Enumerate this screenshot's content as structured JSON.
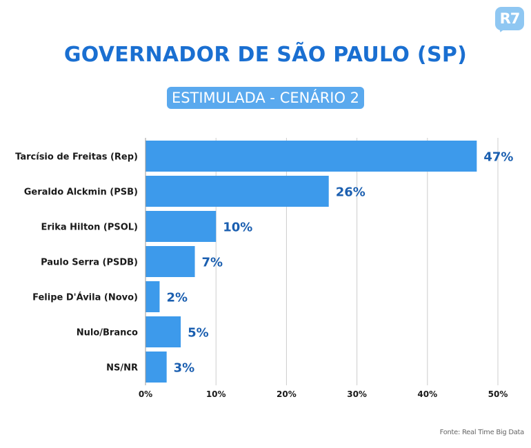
{
  "logo": "R7",
  "header": {
    "title": "GOVERNADOR DE SÃO PAULO (SP)",
    "subtitle": "ESTIMULADA - CENÁRIO 2"
  },
  "source": "Fonte: Real Time Big Data",
  "colors": {
    "bar": "#3d9aeb",
    "title": "#1a6fd1",
    "value_label": "#1b5fb0",
    "grid": "#cccccc"
  },
  "chart_data": {
    "type": "bar",
    "orientation": "horizontal",
    "title": "GOVERNADOR DE SÃO PAULO (SP)",
    "subtitle": "ESTIMULADA - CENÁRIO 2",
    "categories": [
      "Tarcísio de Freitas (Rep)",
      "Geraldo Alckmin (PSB)",
      "Erika Hilton (PSOL)",
      "Paulo Serra (PSDB)",
      "Felipe D'Ávila (Novo)",
      "Nulo/Branco",
      "NS/NR"
    ],
    "values": [
      47,
      26,
      10,
      7,
      2,
      5,
      3
    ],
    "value_labels": [
      "47%",
      "26%",
      "10%",
      "7%",
      "2%",
      "5%",
      "3%"
    ],
    "xlim": [
      0,
      50
    ],
    "x_ticks": [
      0,
      10,
      20,
      30,
      40,
      50
    ],
    "x_tick_labels": [
      "0%",
      "10%",
      "20%",
      "30%",
      "40%",
      "50%"
    ],
    "grid": true,
    "xlabel": "",
    "ylabel": ""
  }
}
